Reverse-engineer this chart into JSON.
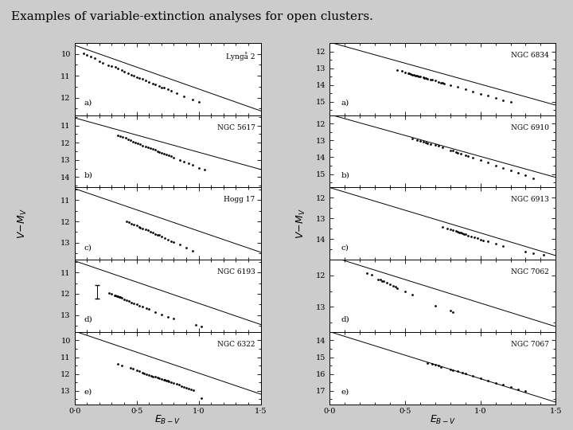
{
  "title": "Examples of variable-extinction analyses for open clusters.",
  "fig_bg": "#d8d8d8",
  "panel_bg": "#ffffff",
  "left_panels": [
    {
      "name": "Lyngå 2",
      "label": "a)",
      "yticks": [
        10,
        11,
        12
      ],
      "ylim": [
        9.5,
        12.8
      ],
      "line_slope": 2.0,
      "line_intercept": 9.6,
      "points": [
        [
          0.07,
          9.97
        ],
        [
          0.1,
          10.05
        ],
        [
          0.13,
          10.12
        ],
        [
          0.16,
          10.2
        ],
        [
          0.2,
          10.32
        ],
        [
          0.23,
          10.42
        ],
        [
          0.27,
          10.52
        ],
        [
          0.3,
          10.55
        ],
        [
          0.33,
          10.6
        ],
        [
          0.35,
          10.68
        ],
        [
          0.38,
          10.75
        ],
        [
          0.4,
          10.8
        ],
        [
          0.43,
          10.88
        ],
        [
          0.46,
          10.95
        ],
        [
          0.48,
          11.0
        ],
        [
          0.5,
          11.05
        ],
        [
          0.52,
          11.1
        ],
        [
          0.55,
          11.15
        ],
        [
          0.57,
          11.2
        ],
        [
          0.6,
          11.28
        ],
        [
          0.63,
          11.35
        ],
        [
          0.65,
          11.38
        ],
        [
          0.68,
          11.45
        ],
        [
          0.7,
          11.52
        ],
        [
          0.72,
          11.55
        ],
        [
          0.75,
          11.62
        ],
        [
          0.78,
          11.7
        ],
        [
          0.82,
          11.78
        ],
        [
          0.88,
          11.92
        ],
        [
          0.95,
          12.1
        ],
        [
          1.0,
          12.2
        ]
      ]
    },
    {
      "name": "NGC 5617",
      "label": "b)",
      "yticks": [
        11,
        12,
        13,
        14
      ],
      "ylim": [
        10.4,
        14.6
      ],
      "line_slope": 2.0,
      "line_intercept": 10.55,
      "points": [
        [
          0.35,
          11.55
        ],
        [
          0.37,
          11.6
        ],
        [
          0.39,
          11.65
        ],
        [
          0.41,
          11.72
        ],
        [
          0.43,
          11.8
        ],
        [
          0.45,
          11.85
        ],
        [
          0.47,
          11.92
        ],
        [
          0.49,
          12.0
        ],
        [
          0.51,
          12.05
        ],
        [
          0.53,
          12.1
        ],
        [
          0.55,
          12.15
        ],
        [
          0.57,
          12.2
        ],
        [
          0.59,
          12.28
        ],
        [
          0.61,
          12.32
        ],
        [
          0.63,
          12.38
        ],
        [
          0.65,
          12.42
        ],
        [
          0.67,
          12.48
        ],
        [
          0.68,
          12.52
        ],
        [
          0.7,
          12.58
        ],
        [
          0.72,
          12.62
        ],
        [
          0.74,
          12.68
        ],
        [
          0.76,
          12.72
        ],
        [
          0.78,
          12.78
        ],
        [
          0.8,
          12.85
        ],
        [
          0.85,
          13.0
        ],
        [
          0.88,
          13.1
        ],
        [
          0.92,
          13.2
        ],
        [
          0.95,
          13.3
        ],
        [
          1.0,
          13.45
        ],
        [
          1.05,
          13.55
        ]
      ]
    },
    {
      "name": "Hogg 17",
      "label": "c)",
      "yticks": [
        11,
        12,
        13
      ],
      "ylim": [
        10.4,
        13.8
      ],
      "line_slope": 2.0,
      "line_intercept": 10.45,
      "points": [
        [
          0.42,
          12.0
        ],
        [
          0.44,
          12.05
        ],
        [
          0.46,
          12.1
        ],
        [
          0.48,
          12.15
        ],
        [
          0.5,
          12.2
        ],
        [
          0.52,
          12.25
        ],
        [
          0.53,
          12.28
        ],
        [
          0.55,
          12.32
        ],
        [
          0.57,
          12.38
        ],
        [
          0.59,
          12.42
        ],
        [
          0.61,
          12.48
        ],
        [
          0.63,
          12.52
        ],
        [
          0.65,
          12.58
        ],
        [
          0.67,
          12.62
        ],
        [
          0.68,
          12.65
        ],
        [
          0.7,
          12.72
        ],
        [
          0.73,
          12.78
        ],
        [
          0.75,
          12.85
        ],
        [
          0.78,
          12.92
        ],
        [
          0.8,
          12.98
        ],
        [
          0.85,
          13.1
        ],
        [
          0.9,
          13.25
        ],
        [
          0.95,
          13.38
        ]
      ]
    },
    {
      "name": "NGC 6193",
      "label": "d)",
      "yticks": [
        11,
        12,
        13
      ],
      "ylim": [
        10.4,
        13.8
      ],
      "line_slope": 2.0,
      "line_intercept": 10.45,
      "has_error_bar": true,
      "error_bar_x": 0.18,
      "error_bar_y": 11.9,
      "error_bar_err": 0.32,
      "points": [
        [
          0.28,
          11.98
        ],
        [
          0.3,
          12.02
        ],
        [
          0.32,
          12.07
        ],
        [
          0.33,
          12.08
        ],
        [
          0.34,
          12.1
        ],
        [
          0.35,
          12.12
        ],
        [
          0.36,
          12.14
        ],
        [
          0.37,
          12.16
        ],
        [
          0.38,
          12.2
        ],
        [
          0.4,
          12.25
        ],
        [
          0.42,
          12.3
        ],
        [
          0.44,
          12.35
        ],
        [
          0.46,
          12.4
        ],
        [
          0.48,
          12.45
        ],
        [
          0.5,
          12.5
        ],
        [
          0.52,
          12.55
        ],
        [
          0.55,
          12.62
        ],
        [
          0.58,
          12.68
        ],
        [
          0.6,
          12.72
        ],
        [
          0.65,
          12.85
        ],
        [
          0.7,
          12.98
        ],
        [
          0.75,
          13.08
        ],
        [
          0.8,
          13.18
        ],
        [
          0.98,
          13.48
        ],
        [
          1.02,
          13.55
        ]
      ]
    },
    {
      "name": "NGC 6322",
      "label": "e)",
      "yticks": [
        10,
        11,
        12,
        13
      ],
      "ylim": [
        9.5,
        13.8
      ],
      "line_slope": 2.5,
      "line_intercept": 9.45,
      "points": [
        [
          0.35,
          11.38
        ],
        [
          0.38,
          11.48
        ],
        [
          0.45,
          11.62
        ],
        [
          0.47,
          11.68
        ],
        [
          0.5,
          11.78
        ],
        [
          0.52,
          11.82
        ],
        [
          0.55,
          11.92
        ],
        [
          0.56,
          11.95
        ],
        [
          0.58,
          12.02
        ],
        [
          0.6,
          12.07
        ],
        [
          0.62,
          12.12
        ],
        [
          0.63,
          12.14
        ],
        [
          0.65,
          12.18
        ],
        [
          0.67,
          12.22
        ],
        [
          0.68,
          12.25
        ],
        [
          0.7,
          12.3
        ],
        [
          0.72,
          12.35
        ],
        [
          0.73,
          12.37
        ],
        [
          0.74,
          12.4
        ],
        [
          0.75,
          12.42
        ],
        [
          0.76,
          12.44
        ],
        [
          0.78,
          12.5
        ],
        [
          0.8,
          12.55
        ],
        [
          0.82,
          12.6
        ],
        [
          0.84,
          12.65
        ],
        [
          0.86,
          12.72
        ],
        [
          0.88,
          12.77
        ],
        [
          0.9,
          12.82
        ],
        [
          0.92,
          12.88
        ],
        [
          0.94,
          12.92
        ],
        [
          0.96,
          12.97
        ],
        [
          1.02,
          13.45
        ]
      ]
    }
  ],
  "right_panels": [
    {
      "name": "NGC 6834",
      "label": "a)",
      "yticks": [
        12,
        13,
        14,
        15
      ],
      "ylim": [
        11.5,
        15.8
      ],
      "line_slope": 2.5,
      "line_intercept": 11.45,
      "points": [
        [
          0.45,
          13.1
        ],
        [
          0.48,
          13.18
        ],
        [
          0.5,
          13.25
        ],
        [
          0.52,
          13.3
        ],
        [
          0.53,
          13.32
        ],
        [
          0.54,
          13.35
        ],
        [
          0.55,
          13.38
        ],
        [
          0.56,
          13.4
        ],
        [
          0.57,
          13.42
        ],
        [
          0.58,
          13.45
        ],
        [
          0.59,
          13.47
        ],
        [
          0.6,
          13.5
        ],
        [
          0.62,
          13.55
        ],
        [
          0.63,
          13.57
        ],
        [
          0.64,
          13.6
        ],
        [
          0.65,
          13.62
        ],
        [
          0.67,
          13.67
        ],
        [
          0.68,
          13.7
        ],
        [
          0.7,
          13.75
        ],
        [
          0.72,
          13.8
        ],
        [
          0.74,
          13.85
        ],
        [
          0.75,
          13.87
        ],
        [
          0.76,
          13.9
        ],
        [
          0.8,
          14.0
        ],
        [
          0.85,
          14.12
        ],
        [
          0.9,
          14.25
        ],
        [
          0.95,
          14.38
        ],
        [
          1.0,
          14.52
        ],
        [
          1.05,
          14.65
        ],
        [
          1.1,
          14.78
        ],
        [
          1.15,
          14.9
        ],
        [
          1.2,
          15.02
        ]
      ]
    },
    {
      "name": "NGC 6910",
      "label": "b)",
      "yticks": [
        12,
        13,
        14,
        15
      ],
      "ylim": [
        11.5,
        15.8
      ],
      "line_slope": 2.5,
      "line_intercept": 11.45,
      "points": [
        [
          0.55,
          12.9
        ],
        [
          0.58,
          12.98
        ],
        [
          0.6,
          13.02
        ],
        [
          0.62,
          13.08
        ],
        [
          0.64,
          13.12
        ],
        [
          0.65,
          13.18
        ],
        [
          0.67,
          13.22
        ],
        [
          0.7,
          13.28
        ],
        [
          0.72,
          13.32
        ],
        [
          0.75,
          13.42
        ],
        [
          0.8,
          13.58
        ],
        [
          0.82,
          13.62
        ],
        [
          0.84,
          13.68
        ],
        [
          0.85,
          13.72
        ],
        [
          0.87,
          13.78
        ],
        [
          0.9,
          13.88
        ],
        [
          0.92,
          13.93
        ],
        [
          0.95,
          14.02
        ],
        [
          1.0,
          14.18
        ],
        [
          1.05,
          14.32
        ],
        [
          1.1,
          14.48
        ],
        [
          1.15,
          14.62
        ],
        [
          1.2,
          14.78
        ],
        [
          1.25,
          14.93
        ],
        [
          1.3,
          15.08
        ],
        [
          1.35,
          15.28
        ]
      ]
    },
    {
      "name": "NGC 6913",
      "label": "c)",
      "yticks": [
        12,
        13,
        14
      ],
      "ylim": [
        11.5,
        15.0
      ],
      "line_slope": 2.2,
      "line_intercept": 11.5,
      "points": [
        [
          0.75,
          13.42
        ],
        [
          0.78,
          13.47
        ],
        [
          0.8,
          13.52
        ],
        [
          0.82,
          13.57
        ],
        [
          0.84,
          13.62
        ],
        [
          0.85,
          13.64
        ],
        [
          0.86,
          13.67
        ],
        [
          0.87,
          13.69
        ],
        [
          0.88,
          13.72
        ],
        [
          0.89,
          13.74
        ],
        [
          0.9,
          13.77
        ],
        [
          0.92,
          13.82
        ],
        [
          0.94,
          13.87
        ],
        [
          0.96,
          13.92
        ],
        [
          0.98,
          13.97
        ],
        [
          1.0,
          14.02
        ],
        [
          1.02,
          14.07
        ],
        [
          1.05,
          14.12
        ],
        [
          1.1,
          14.22
        ],
        [
          1.15,
          14.32
        ],
        [
          1.3,
          14.62
        ],
        [
          1.35,
          14.67
        ],
        [
          1.42,
          14.77
        ]
      ]
    },
    {
      "name": "NGC 7062",
      "label": "d)",
      "yticks": [
        12,
        13
      ],
      "ylim": [
        11.5,
        13.8
      ],
      "line_slope": 1.5,
      "line_intercept": 11.38,
      "points": [
        [
          0.25,
          11.92
        ],
        [
          0.28,
          11.97
        ],
        [
          0.32,
          12.12
        ],
        [
          0.34,
          12.14
        ],
        [
          0.35,
          12.17
        ],
        [
          0.36,
          12.19
        ],
        [
          0.38,
          12.22
        ],
        [
          0.4,
          12.27
        ],
        [
          0.42,
          12.32
        ],
        [
          0.44,
          12.37
        ],
        [
          0.45,
          12.4
        ],
        [
          0.5,
          12.52
        ],
        [
          0.55,
          12.62
        ],
        [
          0.7,
          12.97
        ],
        [
          0.8,
          13.12
        ],
        [
          0.82,
          13.17
        ]
      ]
    },
    {
      "name": "NGC 7067",
      "label": "e)",
      "yticks": [
        14,
        15,
        16,
        17
      ],
      "ylim": [
        13.5,
        17.8
      ],
      "line_slope": 2.8,
      "line_intercept": 13.48,
      "points": [
        [
          0.65,
          15.35
        ],
        [
          0.68,
          15.42
        ],
        [
          0.7,
          15.47
        ],
        [
          0.72,
          15.52
        ],
        [
          0.74,
          15.57
        ],
        [
          0.8,
          15.72
        ],
        [
          0.82,
          15.77
        ],
        [
          0.85,
          15.85
        ],
        [
          0.88,
          15.92
        ],
        [
          0.9,
          15.97
        ],
        [
          0.95,
          16.12
        ],
        [
          1.0,
          16.27
        ],
        [
          1.05,
          16.4
        ],
        [
          1.1,
          16.52
        ],
        [
          1.15,
          16.65
        ],
        [
          1.2,
          16.78
        ],
        [
          1.25,
          16.9
        ],
        [
          1.3,
          17.02
        ]
      ]
    }
  ],
  "xlim": [
    0.0,
    1.5
  ],
  "xticks": [
    0.0,
    0.5,
    1.0,
    1.5
  ],
  "xtick_labels": [
    "0·0",
    "0·5",
    "1·0",
    "1·5"
  ]
}
